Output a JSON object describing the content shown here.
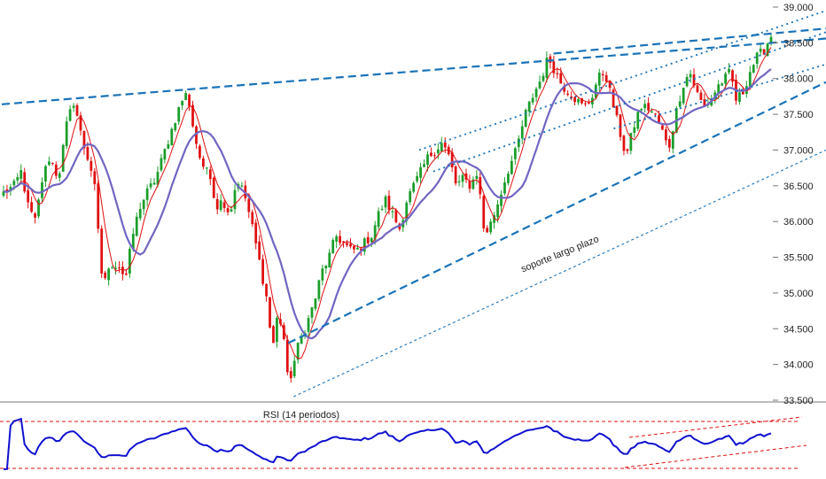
{
  "chart_data": [
    {
      "type": "candlestick",
      "title": "",
      "ylim": [
        33500,
        39000
      ],
      "y_ticks": [
        "33.500",
        "34.000",
        "34.500",
        "35.000",
        "35.500",
        "36.000",
        "36.500",
        "37.000",
        "37.500",
        "38.000",
        "38.500",
        "39.000"
      ],
      "y_tick_values": [
        33500,
        34000,
        34500,
        35000,
        35500,
        36000,
        36500,
        37000,
        37500,
        38000,
        38500,
        39000
      ],
      "grid": false,
      "n_bars": 220,
      "anchors": [
        [
          0,
          36400
        ],
        [
          6,
          36500
        ],
        [
          10,
          36700
        ],
        [
          14,
          36200
        ],
        [
          18,
          36000
        ],
        [
          22,
          36600
        ],
        [
          26,
          36900
        ],
        [
          31,
          36600
        ],
        [
          36,
          37400
        ],
        [
          40,
          37700
        ],
        [
          43,
          37300
        ],
        [
          46,
          37000
        ],
        [
          49,
          36800
        ],
        [
          52,
          36400
        ],
        [
          55,
          35300
        ],
        [
          58,
          35200
        ],
        [
          61,
          35400
        ],
        [
          65,
          35400
        ],
        [
          69,
          35200
        ],
        [
          73,
          35800
        ],
        [
          77,
          36200
        ],
        [
          81,
          36400
        ],
        [
          86,
          36600
        ],
        [
          90,
          36900
        ],
        [
          94,
          37200
        ],
        [
          98,
          37500
        ],
        [
          101,
          37700
        ],
        [
          104,
          37800
        ],
        [
          108,
          37200
        ],
        [
          113,
          36700
        ],
        [
          116,
          36800
        ],
        [
          120,
          36200
        ],
        [
          124,
          36300
        ],
        [
          128,
          36100
        ],
        [
          132,
          36600
        ],
        [
          136,
          36400
        ],
        [
          140,
          36000
        ],
        [
          145,
          35400
        ],
        [
          149,
          34900
        ],
        [
          152,
          34200
        ],
        [
          155,
          34700
        ],
        [
          158,
          34500
        ],
        [
          161,
          33700
        ],
        [
          164,
          34000
        ],
        [
          167,
          34300
        ],
        [
          172,
          34600
        ],
        [
          176,
          34900
        ],
        [
          180,
          35300
        ],
        [
          184,
          35500
        ],
        [
          188,
          35800
        ],
        [
          192,
          35700
        ],
        [
          196,
          35600
        ],
        [
          200,
          35600
        ],
        [
          204,
          35700
        ],
        [
          208,
          35800
        ],
        [
          212,
          36100
        ],
        [
          216,
          36300
        ],
        [
          220,
          36100
        ],
        [
          224,
          35900
        ],
        [
          228,
          36300
        ],
        [
          232,
          36500
        ],
        [
          236,
          36700
        ],
        [
          240,
          36900
        ],
        [
          244,
          37000
        ],
        [
          248,
          37100
        ],
        [
          252,
          36900
        ],
        [
          256,
          36500
        ],
        [
          260,
          36600
        ],
        [
          264,
          36500
        ],
        [
          268,
          36700
        ],
        [
          272,
          35800
        ],
        [
          276,
          36000
        ],
        [
          280,
          36300
        ],
        [
          285,
          36700
        ],
        [
          290,
          37000
        ],
        [
          295,
          37500
        ],
        [
          300,
          37800
        ],
        [
          304,
          38000
        ],
        [
          308,
          38300
        ],
        [
          312,
          38100
        ],
        [
          316,
          37900
        ],
        [
          320,
          37800
        ],
        [
          324,
          37700
        ],
        [
          328,
          37600
        ],
        [
          332,
          37700
        ],
        [
          336,
          38000
        ],
        [
          340,
          38100
        ],
        [
          344,
          37700
        ],
        [
          348,
          37300
        ],
        [
          352,
          36900
        ],
        [
          356,
          37300
        ],
        [
          360,
          37600
        ],
        [
          364,
          37600
        ],
        [
          368,
          37500
        ],
        [
          372,
          37300
        ],
        [
          376,
          37000
        ],
        [
          380,
          37500
        ],
        [
          384,
          37900
        ],
        [
          388,
          38100
        ],
        [
          392,
          37800
        ],
        [
          396,
          37600
        ],
        [
          400,
          37700
        ],
        [
          404,
          37900
        ],
        [
          408,
          38000
        ],
        [
          411,
          38100
        ],
        [
          414,
          37700
        ],
        [
          418,
          37800
        ],
        [
          422,
          38100
        ],
        [
          426,
          38300
        ],
        [
          430,
          38400
        ],
        [
          434,
          38600
        ]
      ],
      "legend": []
    },
    {
      "type": "line",
      "title": "RSI (14 periodos)",
      "ylim": [
        0,
        100
      ],
      "grid": false,
      "legend": []
    }
  ],
  "annotations": {
    "support_label": "soporte largo plazo"
  },
  "colors": {
    "up": "#1a9e2a",
    "down": "#e01010",
    "ma_fast": "#e01010",
    "ma_slow": "#7066c2",
    "trend_dashed": "#1a73b8",
    "trend_dotted": "#1a73b8",
    "rsi_line": "#1010d0",
    "rsi_bounds": "#e01010",
    "axis_text": "#222222"
  }
}
